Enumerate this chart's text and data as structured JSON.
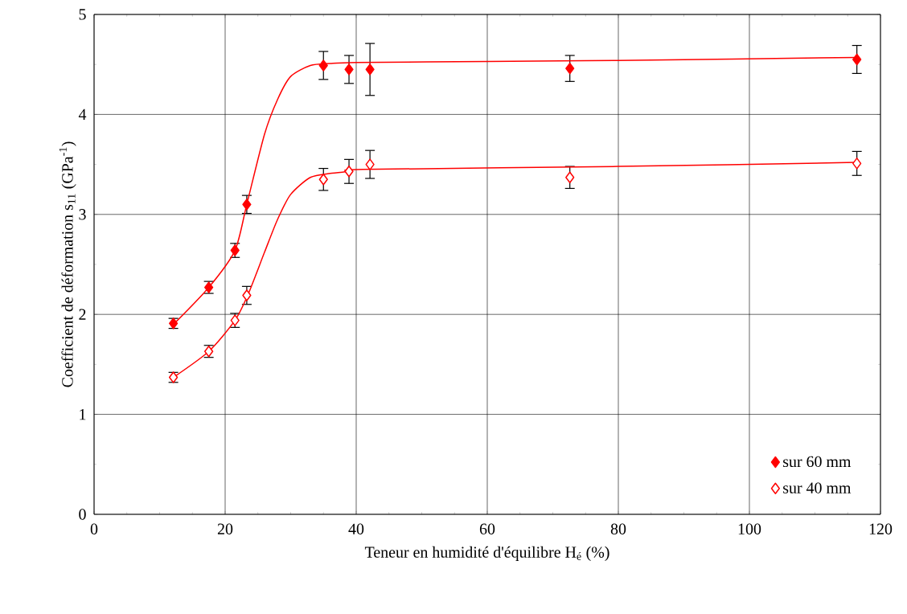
{
  "chart_data": {
    "type": "scatter",
    "xlabel": "Teneur en humidité d'équilibre H$_{é}$ (%)",
    "ylabel": "Coefficient de déformation s$_{11}$ (GPa$^{-1}$)",
    "xlim": [
      0,
      120
    ],
    "xticks": [
      0,
      20,
      40,
      60,
      80,
      100,
      120
    ],
    "ylim": [
      0,
      5
    ],
    "yticks": [
      0,
      1,
      2,
      3,
      4,
      5
    ],
    "grid": true,
    "legend": "bottom right",
    "series": [
      {
        "name": "sur 60 mm",
        "color": "#ff0000",
        "marker": "diamond",
        "x": [
          12.1,
          17.5,
          21.5,
          23.3,
          35.0,
          38.9,
          42.1,
          72.6,
          116.4
        ],
        "values": [
          1.91,
          2.27,
          2.64,
          3.1,
          4.49,
          4.45,
          4.45,
          4.46,
          4.55
        ],
        "errors": [
          0.05,
          0.06,
          0.07,
          0.09,
          0.14,
          0.14,
          0.26,
          0.13,
          0.14
        ]
      },
      {
        "name": "sur 40 mm",
        "color": "#ff0000",
        "marker": "diamond",
        "x": [
          12.1,
          17.5,
          21.5,
          23.3,
          35.0,
          38.9,
          42.1,
          72.6,
          116.4
        ],
        "values": [
          1.37,
          1.63,
          1.94,
          2.19,
          3.35,
          3.43,
          3.5,
          3.37,
          3.51
        ],
        "errors": [
          0.05,
          0.06,
          0.07,
          0.09,
          0.11,
          0.12,
          0.14,
          0.11,
          0.12
        ]
      },
      {
        "type": "line",
        "color": "#ff0000",
        "x": [
          12.1,
          17.5,
          21.5,
          23.3,
          26,
          28,
          30,
          33,
          36,
          40,
          60,
          80,
          116.4
        ],
        "values": [
          1.9,
          2.27,
          2.64,
          3.1,
          3.8,
          4.15,
          4.38,
          4.49,
          4.51,
          4.52,
          4.53,
          4.54,
          4.57
        ]
      },
      {
        "type": "line",
        "color": "#ff0000",
        "x": [
          12.1,
          17.5,
          21.5,
          23.5,
          26,
          28,
          30,
          33,
          36,
          39,
          41,
          80,
          116.4
        ],
        "values": [
          1.37,
          1.63,
          1.94,
          2.2,
          2.62,
          2.95,
          3.2,
          3.37,
          3.41,
          3.43,
          3.45,
          3.48,
          3.52
        ]
      }
    ]
  }
}
